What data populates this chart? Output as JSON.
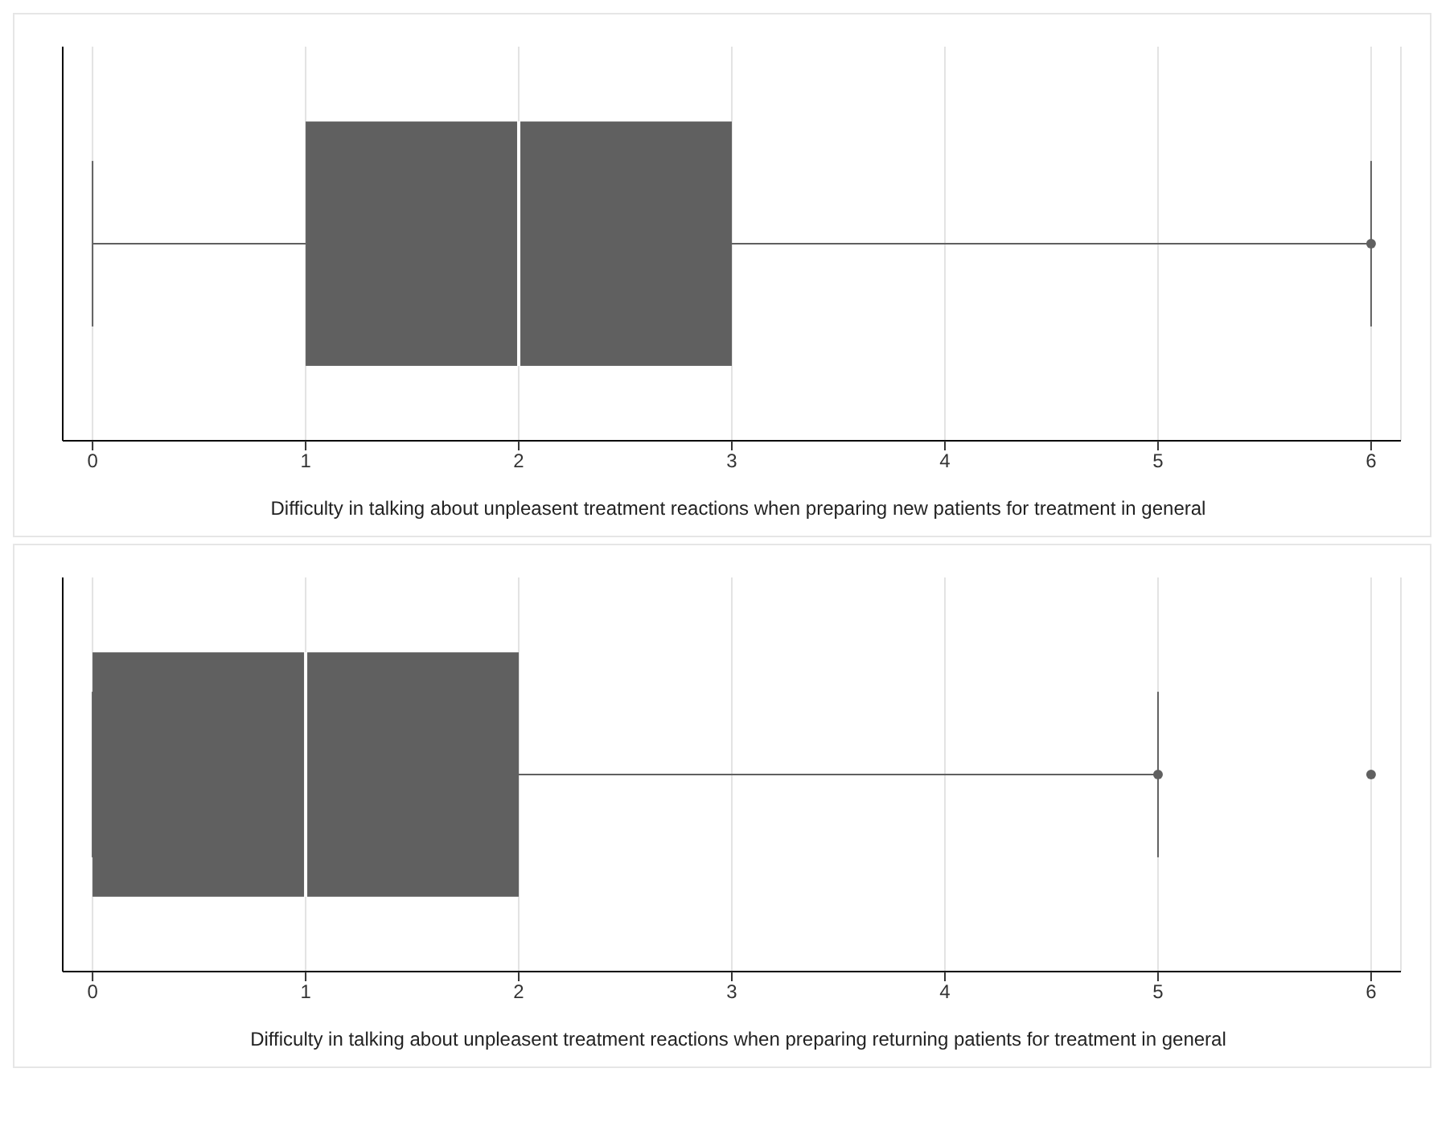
{
  "chart_data": [
    {
      "type": "box",
      "orientation": "horizontal",
      "categories": [
        null
      ],
      "color": "#606060",
      "boxes": [
        {
          "low": 0,
          "q1": 1,
          "median": 2,
          "q3": 3,
          "high": 6,
          "outliers": [
            6
          ]
        }
      ],
      "xlim": [
        -0.14,
        6.14
      ],
      "xticks": [
        0,
        1,
        2,
        3,
        4,
        5,
        6
      ],
      "grid": "x",
      "tick_labels": "x",
      "xlabel": "Difficulty in talking about unpleasent treatment reactions when preparing new patients for treatment in general"
    },
    {
      "type": "box",
      "orientation": "horizontal",
      "categories": [
        null
      ],
      "color": "#606060",
      "boxes": [
        {
          "low": 0,
          "q1": 0,
          "median": 1,
          "q3": 2,
          "high": 5,
          "outliers": [
            5,
            6
          ]
        }
      ],
      "xlim": [
        -0.14,
        6.14
      ],
      "xticks": [
        0,
        1,
        2,
        3,
        4,
        5,
        6
      ],
      "grid": "x",
      "tick_labels": "x",
      "xlabel": "Difficulty in talking about unpleasent treatment reactions when preparing returning patients for treatment in general"
    }
  ]
}
